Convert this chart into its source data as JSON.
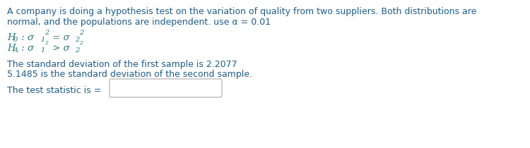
{
  "bg_color": "#ffffff",
  "blue": "#1F5C8B",
  "teal": "#2E747A",
  "line1": "A company is doing a hypothesis test on the variation of quality from two suppliers. Both distributions are",
  "line2": "normal, and the populations are independent. use α = 0.01",
  "sd_line1": "The standard deviation of the first sample is 2.2077",
  "sd_line2": "5.1485 is the standard deviation of the second sample.",
  "test_stat_label": "The test statistic is =",
  "fs_body": 9.0,
  "fs_math_main": 9.5,
  "fs_math_small": 7.0
}
